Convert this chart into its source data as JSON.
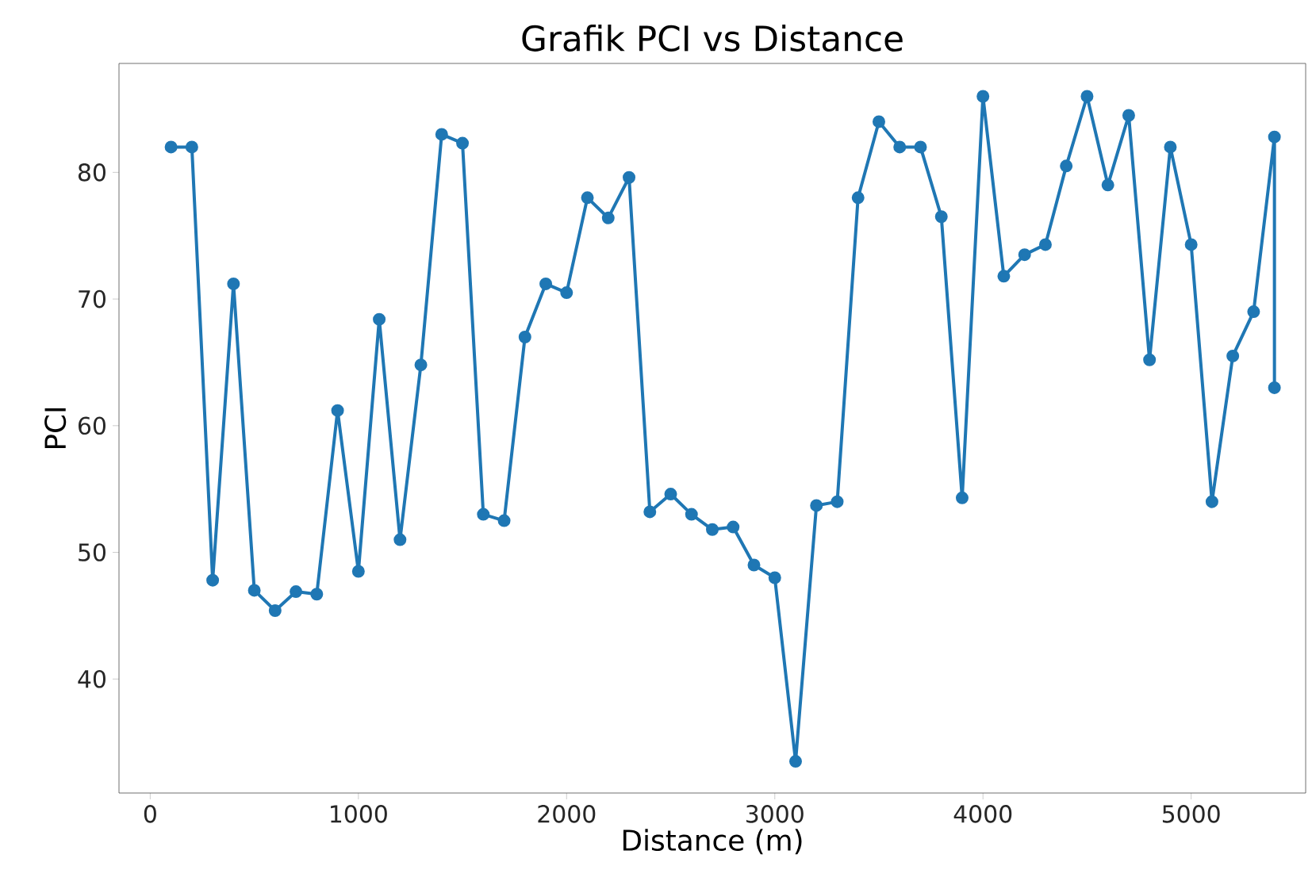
{
  "chart_data": {
    "type": "line",
    "title": "Grafik PCI vs Distance",
    "xlabel": "Distance (m)",
    "ylabel": "PCI",
    "x": [
      100,
      200,
      300,
      400,
      500,
      600,
      700,
      800,
      900,
      1000,
      1100,
      1200,
      1300,
      1400,
      1500,
      1600,
      1700,
      1800,
      1900,
      2000,
      2100,
      2200,
      2300,
      2400,
      2500,
      2600,
      2700,
      2800,
      2900,
      3000,
      3100,
      3200,
      3300,
      3400,
      3500,
      3600,
      3700,
      3800,
      3900,
      4000,
      4100,
      4200,
      4300,
      4400,
      4500,
      4600,
      4700,
      4800,
      4900,
      5000,
      5100,
      5200,
      5300,
      5400,
      5400
    ],
    "series": [
      {
        "color": "#1f77b4",
        "values": [
          82,
          82,
          47.8,
          71.2,
          47,
          45.4,
          46.9,
          46.7,
          61.2,
          48.5,
          68.4,
          51,
          64.8,
          83,
          82.3,
          53,
          52.5,
          67,
          71.2,
          70.5,
          78,
          76.4,
          79.6,
          53.2,
          54.6,
          53,
          51.8,
          52,
          49,
          48,
          33.5,
          53.7,
          54,
          78,
          84,
          82,
          82,
          76.5,
          54.3,
          86,
          71.8,
          73.5,
          74.3,
          80.5,
          86,
          79,
          84.5,
          65.2,
          82,
          74.3,
          54,
          65.5,
          69,
          82.8,
          63
        ]
      }
    ],
    "xlim": [
      -150,
      5550
    ],
    "ylim": [
      31,
      88.6
    ],
    "xticks": [
      0,
      1000,
      2000,
      3000,
      4000,
      5000
    ],
    "yticks": [
      40,
      50,
      60,
      70,
      80
    ],
    "marker": "circle",
    "line_style": "solid"
  }
}
